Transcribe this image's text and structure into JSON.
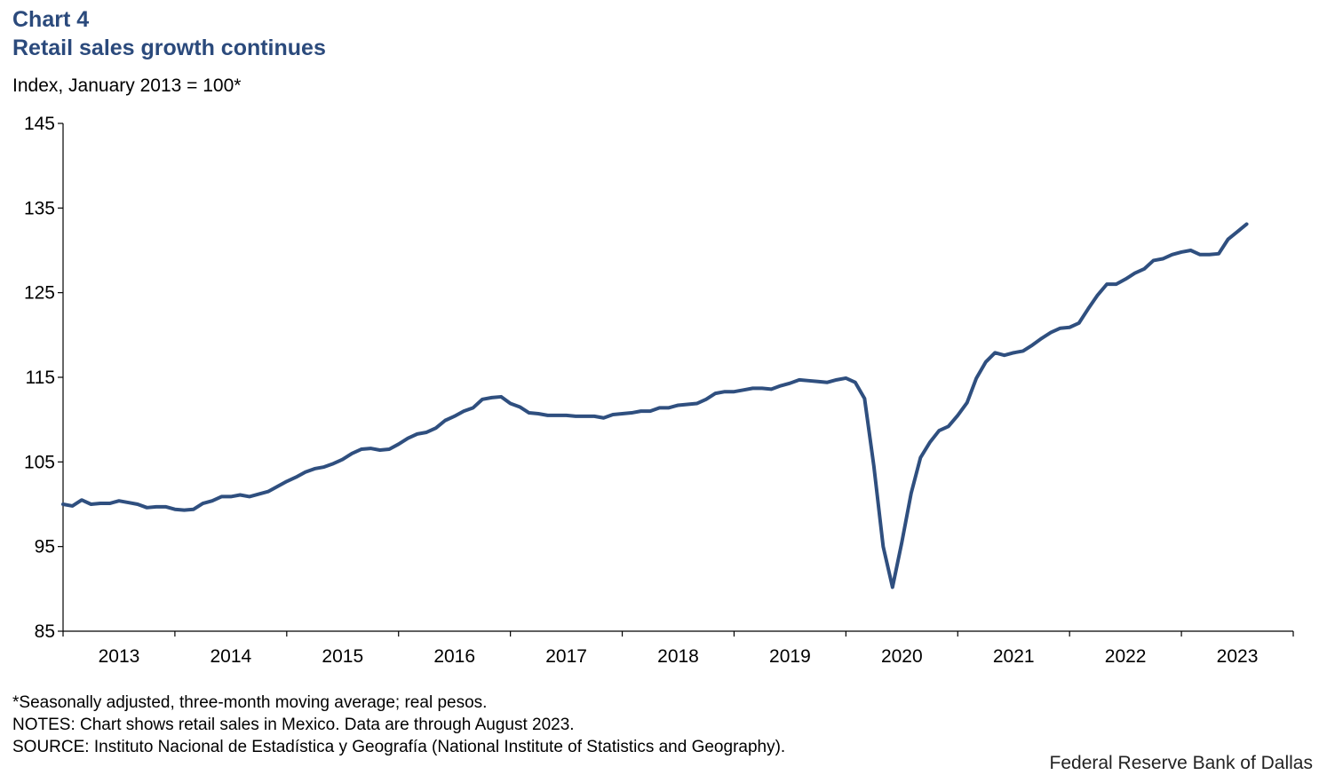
{
  "header": {
    "chart_number": "Chart 4",
    "title": "Retail sales growth continues",
    "unit_label": "Index, January 2013 = 100*"
  },
  "notes": [
    "*Seasonally adjusted, three-month moving average; real pesos.",
    "NOTES: Chart shows retail sales in Mexico. Data are through August 2023.",
    "SOURCE: Instituto Nacional de Estadística y Geografía (National Institute of Statistics and Geography)."
  ],
  "credit": "Federal Reserve Bank of Dallas",
  "colors": {
    "title": "#2b4a7c",
    "line": "#2f4f7f",
    "axis": "#000000"
  },
  "chart_data": {
    "type": "line",
    "title": "Retail sales growth continues",
    "ylabel": "Index, January 2013 = 100*",
    "xlabel": "",
    "ylim": [
      85,
      145
    ],
    "yticks": [
      85,
      95,
      105,
      115,
      125,
      135,
      145
    ],
    "x_start": "2013-01",
    "x_end_exclusive": "2024-01",
    "x_tick_labels": [
      "2013",
      "2014",
      "2015",
      "2016",
      "2017",
      "2018",
      "2019",
      "2020",
      "2021",
      "2022",
      "2023"
    ],
    "grid": false,
    "legend": "none",
    "series": [
      {
        "name": "",
        "x": [
          "2013-01",
          "2013-02",
          "2013-03",
          "2013-04",
          "2013-05",
          "2013-06",
          "2013-07",
          "2013-08",
          "2013-09",
          "2013-10",
          "2013-11",
          "2013-12",
          "2014-01",
          "2014-02",
          "2014-03",
          "2014-04",
          "2014-05",
          "2014-06",
          "2014-07",
          "2014-08",
          "2014-09",
          "2014-10",
          "2014-11",
          "2014-12",
          "2015-01",
          "2015-02",
          "2015-03",
          "2015-04",
          "2015-05",
          "2015-06",
          "2015-07",
          "2015-08",
          "2015-09",
          "2015-10",
          "2015-11",
          "2015-12",
          "2016-01",
          "2016-02",
          "2016-03",
          "2016-04",
          "2016-05",
          "2016-06",
          "2016-07",
          "2016-08",
          "2016-09",
          "2016-10",
          "2016-11",
          "2016-12",
          "2017-01",
          "2017-02",
          "2017-03",
          "2017-04",
          "2017-05",
          "2017-06",
          "2017-07",
          "2017-08",
          "2017-09",
          "2017-10",
          "2017-11",
          "2017-12",
          "2018-01",
          "2018-02",
          "2018-03",
          "2018-04",
          "2018-05",
          "2018-06",
          "2018-07",
          "2018-08",
          "2018-09",
          "2018-10",
          "2018-11",
          "2018-12",
          "2019-01",
          "2019-02",
          "2019-03",
          "2019-04",
          "2019-05",
          "2019-06",
          "2019-07",
          "2019-08",
          "2019-09",
          "2019-10",
          "2019-11",
          "2019-12",
          "2020-01",
          "2020-02",
          "2020-03",
          "2020-04",
          "2020-05",
          "2020-06",
          "2020-07",
          "2020-08",
          "2020-09",
          "2020-10",
          "2020-11",
          "2020-12",
          "2021-01",
          "2021-02",
          "2021-03",
          "2021-04",
          "2021-05",
          "2021-06",
          "2021-07",
          "2021-08",
          "2021-09",
          "2021-10",
          "2021-11",
          "2021-12",
          "2022-01",
          "2022-02",
          "2022-03",
          "2022-04",
          "2022-05",
          "2022-06",
          "2022-07",
          "2022-08",
          "2022-09",
          "2022-10",
          "2022-11",
          "2022-12",
          "2023-01",
          "2023-02",
          "2023-03",
          "2023-04",
          "2023-05",
          "2023-06",
          "2023-07",
          "2023-08"
        ],
        "values": [
          100.0,
          99.8,
          100.5,
          100.0,
          100.1,
          100.1,
          100.4,
          100.2,
          100.0,
          99.6,
          99.7,
          99.7,
          99.4,
          99.3,
          99.4,
          100.1,
          100.4,
          100.9,
          100.9,
          101.1,
          100.9,
          101.2,
          101.5,
          102.1,
          102.7,
          103.2,
          103.8,
          104.2,
          104.4,
          104.8,
          105.3,
          106.0,
          106.5,
          106.6,
          106.4,
          106.5,
          107.1,
          107.8,
          108.3,
          108.5,
          109.0,
          109.9,
          110.4,
          111.0,
          111.4,
          112.4,
          112.6,
          112.7,
          111.9,
          111.5,
          110.8,
          110.7,
          110.5,
          110.5,
          110.5,
          110.4,
          110.4,
          110.4,
          110.2,
          110.6,
          110.7,
          110.8,
          111.0,
          111.0,
          111.4,
          111.4,
          111.7,
          111.8,
          111.9,
          112.4,
          113.1,
          113.3,
          113.3,
          113.5,
          113.7,
          113.7,
          113.6,
          114.0,
          114.3,
          114.7,
          114.6,
          114.5,
          114.4,
          114.7,
          114.9,
          114.4,
          112.5,
          104.5,
          95.0,
          90.2,
          95.5,
          101.3,
          105.5,
          107.3,
          108.7,
          109.2,
          110.5,
          112.0,
          114.9,
          116.8,
          117.9,
          117.6,
          117.9,
          118.1,
          118.8,
          119.6,
          120.3,
          120.8,
          120.9,
          121.4,
          123.1,
          124.7,
          126.0,
          126.0,
          126.6,
          127.3,
          127.8,
          128.8,
          129.0,
          129.5,
          129.8,
          130.0,
          129.5,
          129.5,
          129.6,
          131.3,
          132.2,
          133.1
        ]
      }
    ]
  }
}
